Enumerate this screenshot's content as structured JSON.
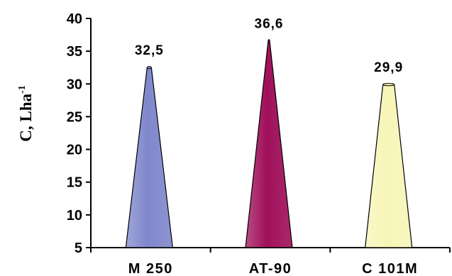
{
  "chart_data": {
    "type": "bar",
    "title": "",
    "xlabel": "",
    "ylabel": "C, Lha",
    "ylabel_superscript": "-1",
    "categories": [
      "M  250",
      "AT-90",
      "C  101M"
    ],
    "values": [
      32.5,
      36.6,
      29.9
    ],
    "data_labels": [
      "32,5",
      "36,6",
      "29,9"
    ],
    "ylim": [
      5,
      40
    ],
    "yticks": [
      5,
      10,
      15,
      20,
      25,
      30,
      35,
      40
    ],
    "grid": false,
    "legend": "none",
    "bar_shape": "cone",
    "colors": [
      "#8088cc",
      "#a0105a",
      "#f8f5b8"
    ]
  }
}
